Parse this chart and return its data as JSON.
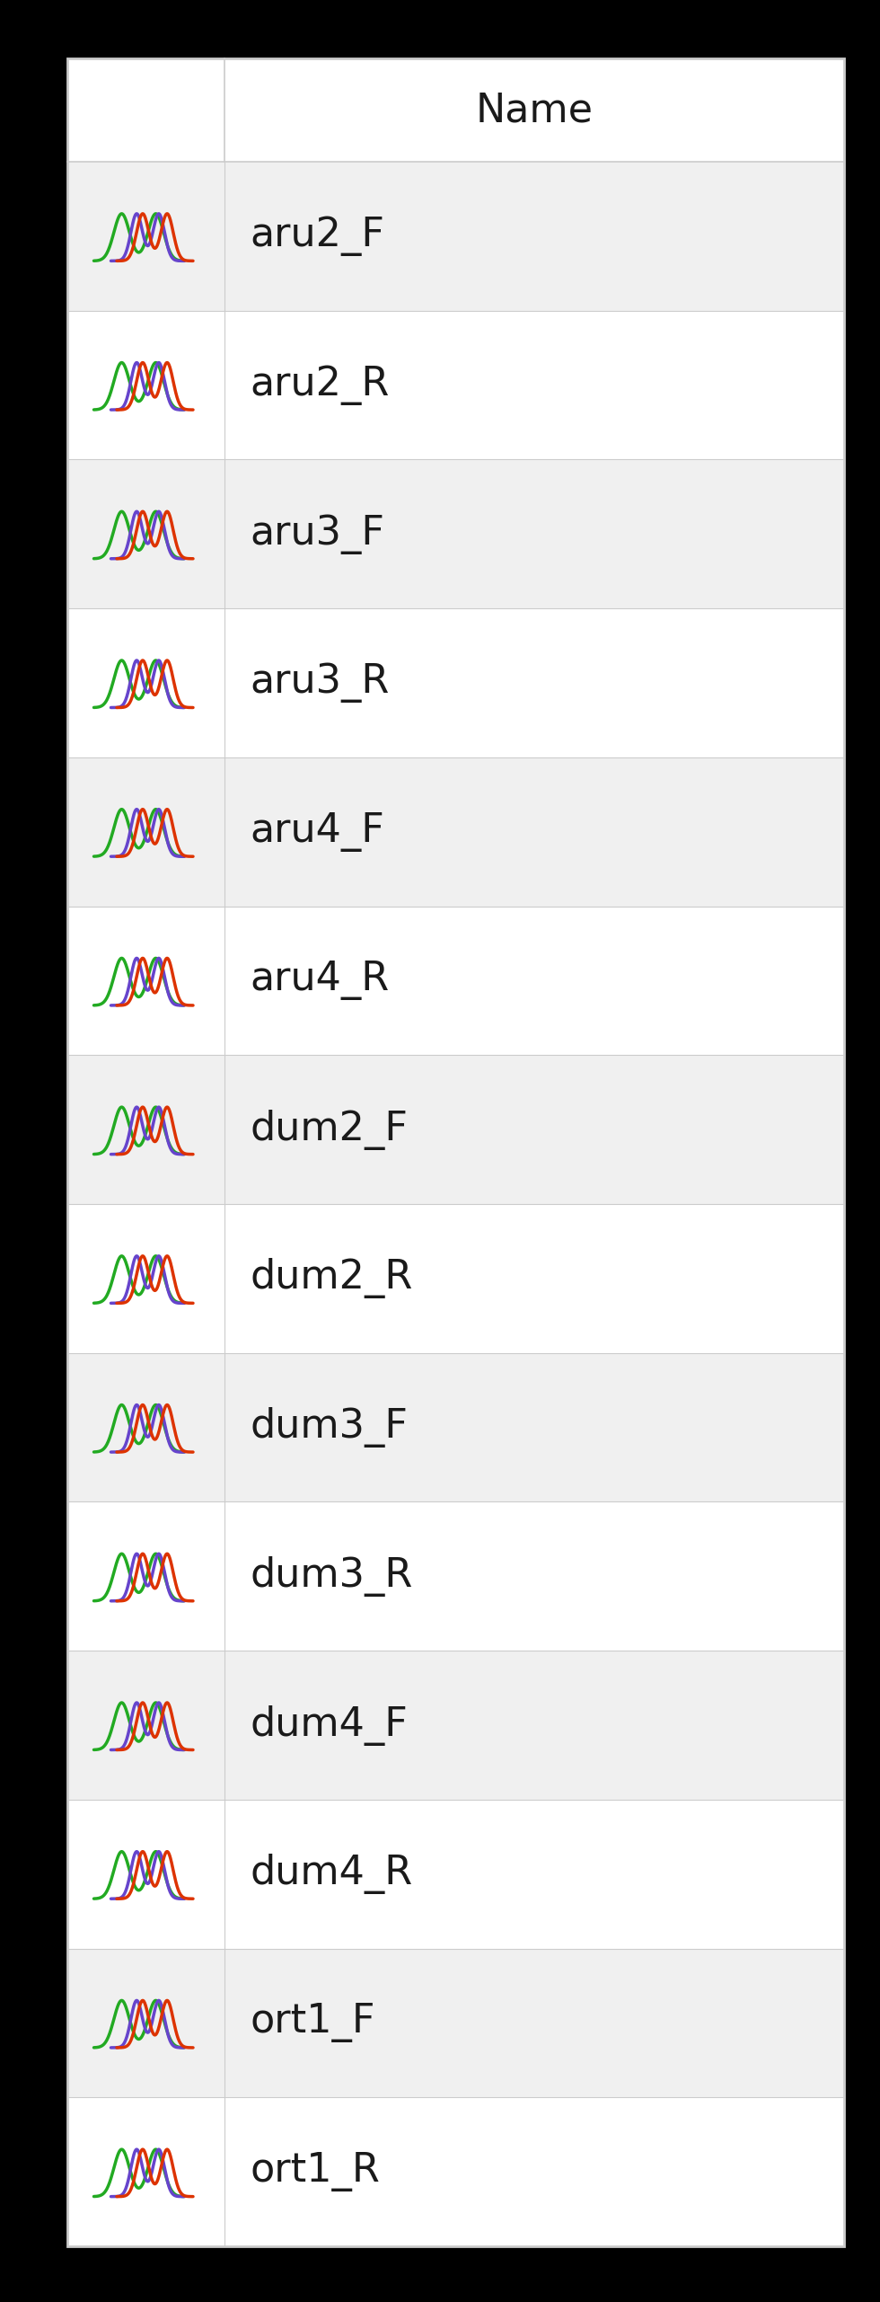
{
  "rows": [
    "aru2_F",
    "aru2_R",
    "aru3_F",
    "aru3_R",
    "aru4_F",
    "aru4_R",
    "dum2_F",
    "dum2_R",
    "dum3_F",
    "dum3_R",
    "dum4_F",
    "dum4_R",
    "ort1_F",
    "ort1_R"
  ],
  "header": "Name",
  "bg_white": "#ffffff",
  "bg_gray": "#f0f0f0",
  "border_color": "#cccccc",
  "text_color": "#1a1a1a",
  "icon_colors": [
    "#22aa22",
    "#dd3300",
    "#6644cc"
  ],
  "outer_bg": "#000000",
  "font_size": 28
}
